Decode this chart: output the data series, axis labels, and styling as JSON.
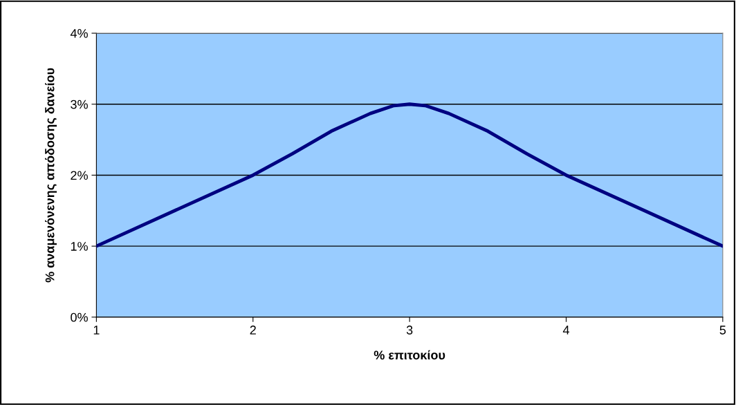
{
  "chart_data": {
    "type": "line",
    "xlabel": "% επιτοκίου",
    "ylabel": "% αναμενόνενης απόδοσης δανείου",
    "x": [
      1,
      1.5,
      2,
      2.25,
      2.5,
      2.75,
      2.9,
      3,
      3.1,
      3.25,
      3.5,
      3.75,
      4,
      4.5,
      5
    ],
    "series": [
      {
        "color": "#000080",
        "values": [
          1,
          1.5,
          2,
          2.3,
          2.62,
          2.87,
          2.98,
          3,
          2.98,
          2.87,
          2.62,
          2.3,
          2,
          1.5,
          1
        ]
      }
    ],
    "xlim": [
      1,
      5
    ],
    "xticks": [
      1,
      2,
      3,
      4,
      5
    ],
    "ylim": [
      0,
      4
    ],
    "yticks": [
      {
        "value": 0,
        "label": "0%"
      },
      {
        "value": 1,
        "label": "1%"
      },
      {
        "value": 2,
        "label": "2%"
      },
      {
        "value": 3,
        "label": "3%"
      },
      {
        "value": 4,
        "label": "4%"
      }
    ],
    "grid": "y",
    "marker": "none",
    "line_style": "solid",
    "legend": false
  }
}
